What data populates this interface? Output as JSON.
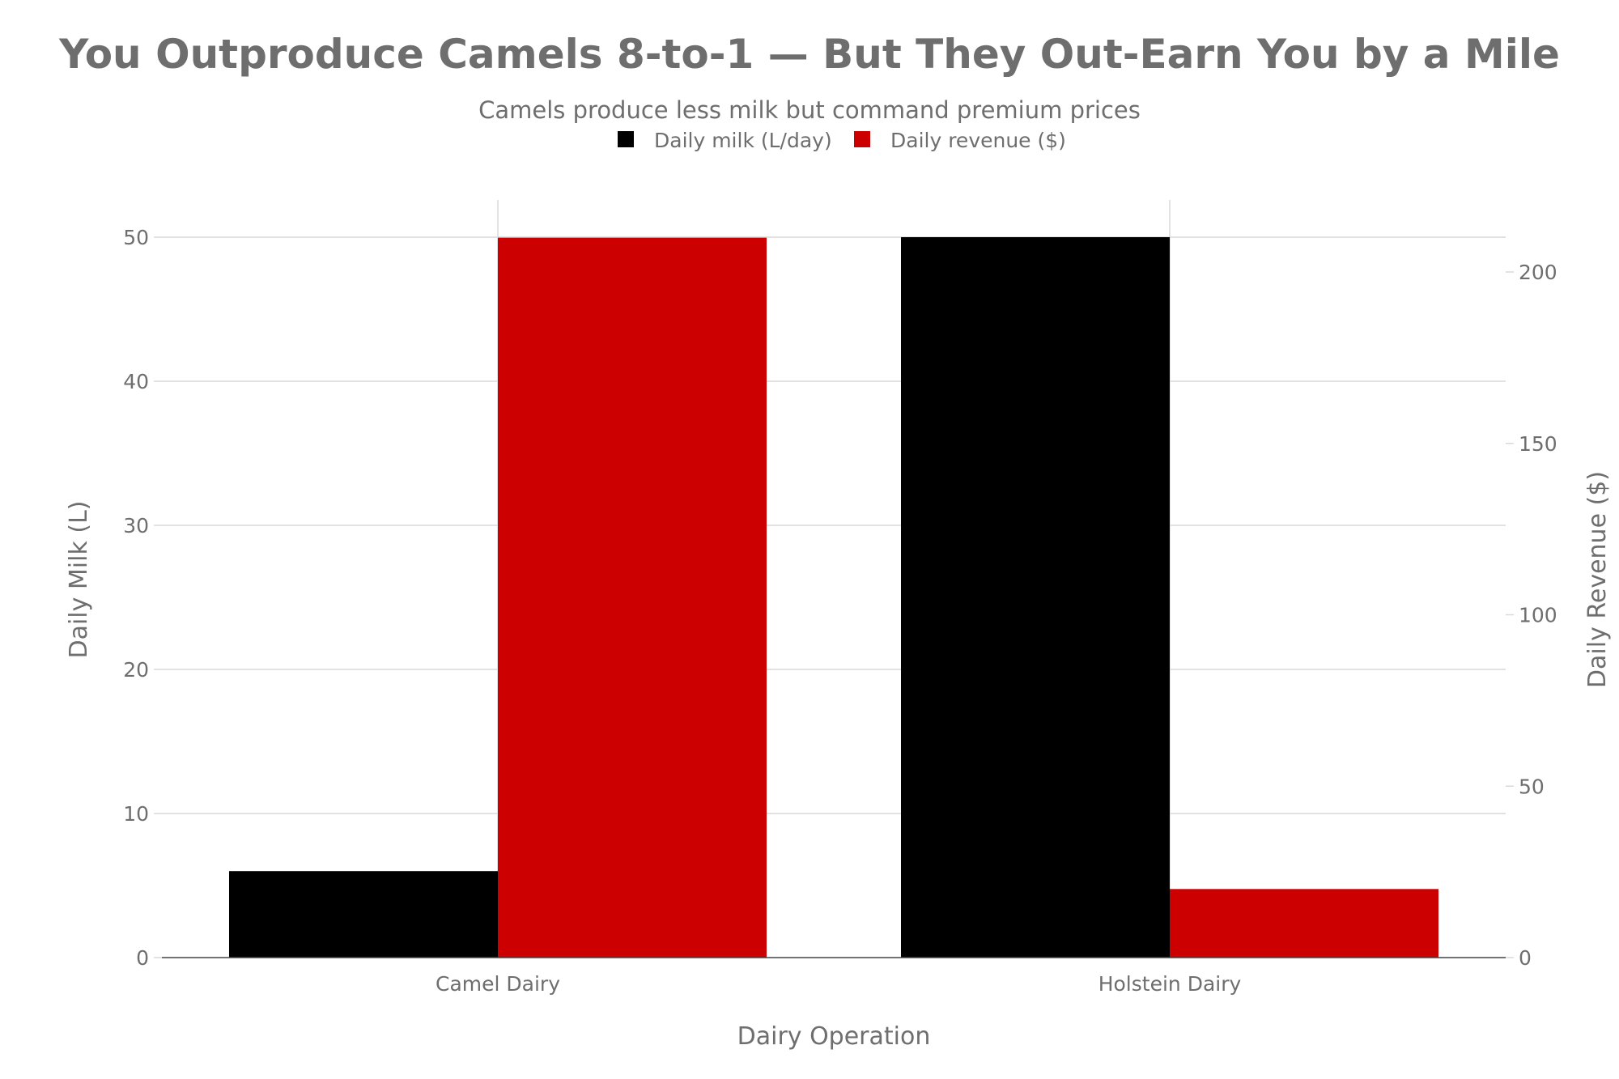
{
  "chart_data": {
    "type": "bar",
    "title": "You Outproduce Camels 8-to-1 — But They Out-Earn You by a Mile",
    "subtitle": "Camels produce less milk but command premium prices",
    "xlabel": "Dairy Operation",
    "ylabel": "Daily Milk (L)",
    "y2label": "Daily Revenue ($)",
    "categories": [
      "Camel Dairy",
      "Holstein Dairy"
    ],
    "series": [
      {
        "name": "Daily milk (L/day)",
        "axis": "left",
        "color": "#000000",
        "values": [
          6,
          50
        ]
      },
      {
        "name": "Daily revenue ($)",
        "axis": "right",
        "color": "#cc0000",
        "values": [
          210,
          20
        ]
      }
    ],
    "ylim": [
      0,
      50
    ],
    "y2lim": [
      0,
      200
    ],
    "yticks": [
      "0",
      "10",
      "20",
      "30",
      "40",
      "50"
    ],
    "y2ticks": [
      "0",
      "50",
      "100",
      "150",
      "200"
    ],
    "grid": true,
    "legend_position": "top-center"
  },
  "colors": {
    "text": "#6e6e6e",
    "grid": "#d9d9d9",
    "axis_line": "#444444"
  }
}
